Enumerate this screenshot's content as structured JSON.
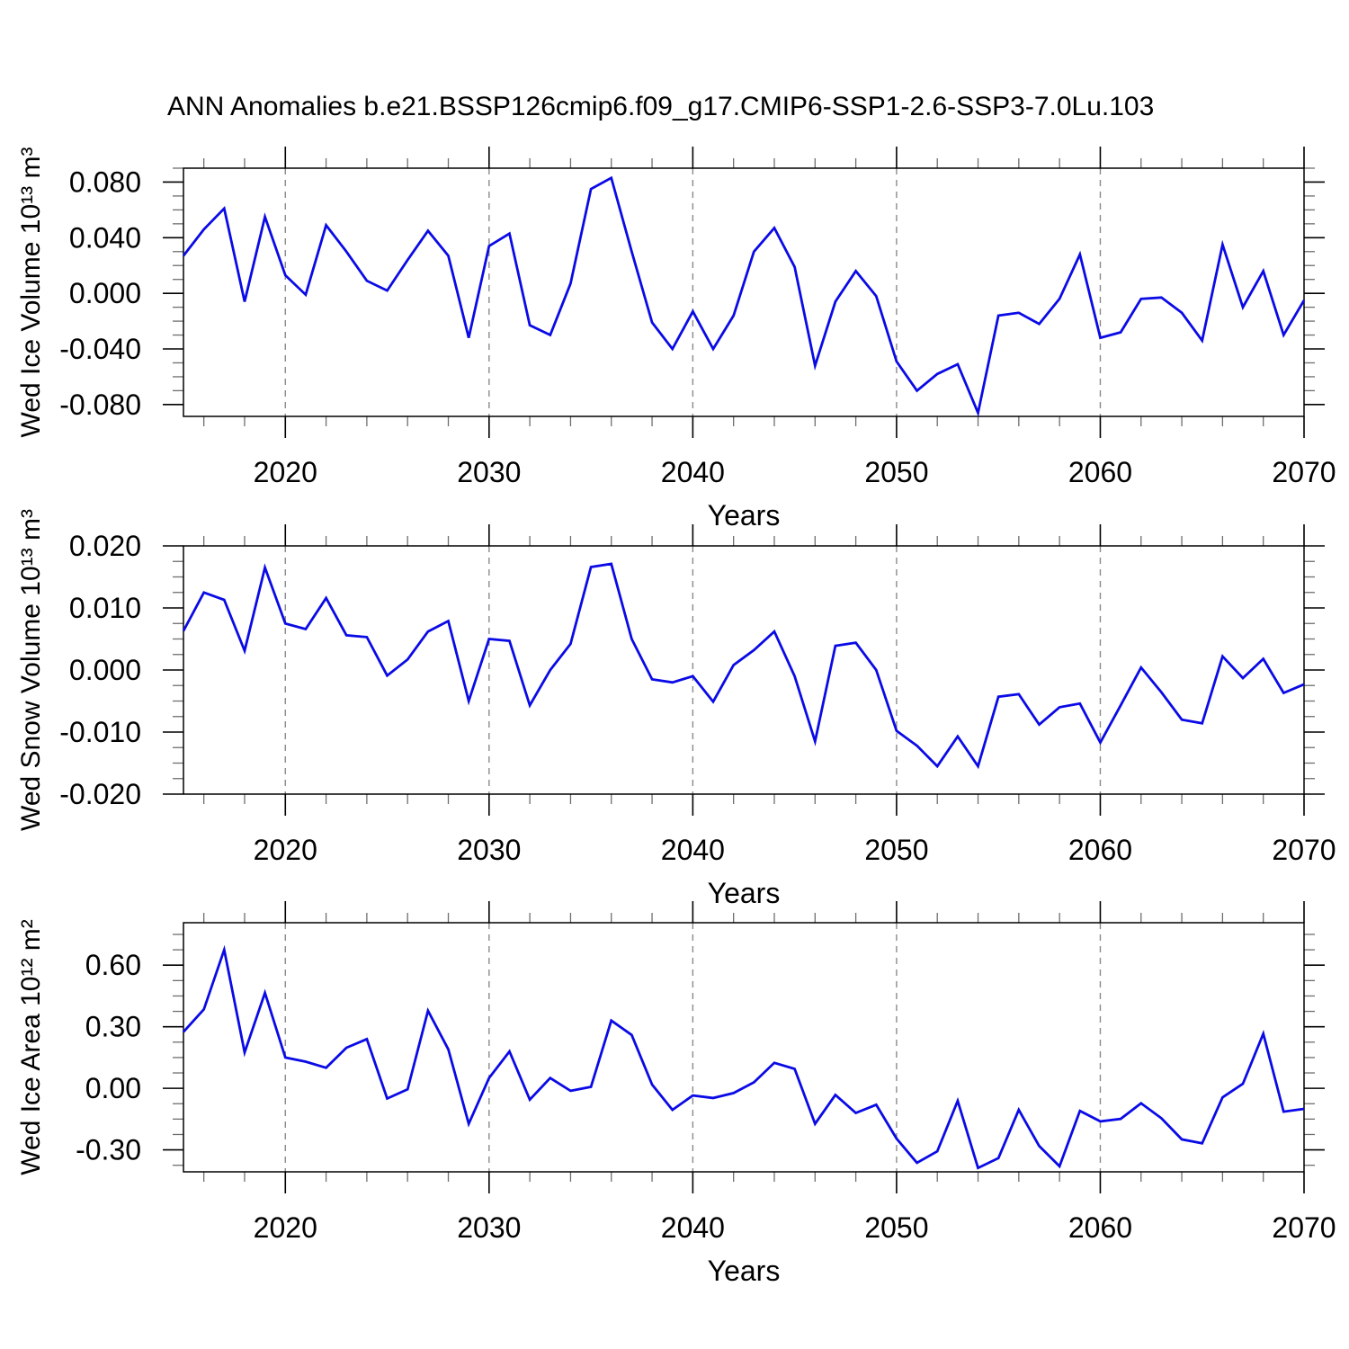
{
  "title": "ANN Anomalies b.e21.BSSP126cmip6.f09_g17.CMIP6-SSP1-2.6-SSP3-7.0Lu.103",
  "colors": {
    "line": "#0a0ae6",
    "axis": "#000000",
    "grid": "#8a8a8a",
    "minor_tick": "#6e6e6e",
    "text": "#000000"
  },
  "chart_data": [
    {
      "type": "line",
      "ylabel": "Wed Ice Volume 10¹³ m³",
      "xlabel": "Years",
      "x_start": 2015,
      "x_end": 2070,
      "ylim": [
        -0.0885,
        0.09
      ],
      "ytick_values": [
        0.08,
        0.04,
        0.0,
        -0.04,
        -0.08
      ],
      "ytick_labels": [
        "0.080",
        "0.040",
        "0.000",
        "-0.040",
        "-0.080"
      ],
      "y_minor_step": 0.01,
      "xtick_values": [
        2020,
        2030,
        2040,
        2050,
        2060,
        2070
      ],
      "xtick_labels": [
        "2020",
        "2030",
        "2040",
        "2050",
        "2060",
        "2070"
      ],
      "x_minor_step": 2,
      "grid_years": [
        2020,
        2030,
        2040,
        2050,
        2060
      ],
      "values": [
        0.027,
        0.046,
        0.061,
        -0.006,
        0.055,
        0.013,
        -0.001,
        0.049,
        0.03,
        0.009,
        0.002,
        0.024,
        0.045,
        0.027,
        -0.032,
        0.034,
        0.043,
        -0.023,
        -0.03,
        0.007,
        0.075,
        0.083,
        0.03,
        -0.021,
        -0.04,
        -0.013,
        -0.04,
        -0.016,
        0.03,
        0.047,
        0.019,
        -0.052,
        -0.006,
        0.016,
        -0.002,
        -0.049,
        -0.07,
        -0.058,
        -0.051,
        -0.086,
        -0.016,
        -0.014,
        -0.022,
        -0.004,
        0.028,
        -0.032,
        -0.028,
        -0.004,
        -0.003,
        -0.014,
        -0.034,
        0.035,
        -0.01,
        0.016,
        -0.03,
        -0.005
      ]
    },
    {
      "type": "line",
      "ylabel": "Wed Snow Volume 10¹³ m³",
      "xlabel": "Years",
      "x_start": 2015,
      "x_end": 2070,
      "ylim": [
        -0.02,
        0.02
      ],
      "ytick_values": [
        0.02,
        0.01,
        0.0,
        -0.01,
        -0.02
      ],
      "ytick_labels": [
        "0.020",
        "0.010",
        "0.000",
        "-0.010",
        "-0.020"
      ],
      "y_minor_step": 0.0025,
      "xtick_values": [
        2020,
        2030,
        2040,
        2050,
        2060,
        2070
      ],
      "xtick_labels": [
        "2020",
        "2030",
        "2040",
        "2050",
        "2060",
        "2070"
      ],
      "x_minor_step": 2,
      "grid_years": [
        2020,
        2030,
        2040,
        2050,
        2060
      ],
      "values": [
        0.0063,
        0.0125,
        0.0113,
        0.0031,
        0.0165,
        0.0075,
        0.0066,
        0.0116,
        0.0056,
        0.0053,
        -0.0009,
        0.0017,
        0.0062,
        0.0079,
        -0.005,
        0.005,
        0.0047,
        -0.0057,
        0.0,
        0.0042,
        0.0166,
        0.0171,
        0.005,
        -0.0015,
        -0.002,
        -0.001,
        -0.0051,
        0.0008,
        0.0032,
        0.0062,
        -0.001,
        -0.0115,
        0.0039,
        0.0044,
        0.0,
        -0.0098,
        -0.0122,
        -0.0155,
        -0.0107,
        -0.0155,
        -0.0043,
        -0.0039,
        -0.0088,
        -0.006,
        -0.0054,
        -0.0117,
        -0.0057,
        0.0004,
        -0.0036,
        -0.008,
        -0.0086,
        0.0022,
        -0.0013,
        0.0018,
        -0.0037,
        -0.0023
      ]
    },
    {
      "type": "line",
      "ylabel": "Wed Ice Area 10¹² m²",
      "xlabel": "Years",
      "x_start": 2015,
      "x_end": 2070,
      "ylim": [
        -0.407,
        0.807
      ],
      "ytick_values": [
        0.6,
        0.3,
        0.0,
        -0.3
      ],
      "ytick_labels": [
        "0.60",
        "0.30",
        "0.00",
        "-0.30"
      ],
      "y_minor_step": 0.075,
      "xtick_values": [
        2020,
        2030,
        2040,
        2050,
        2060,
        2070
      ],
      "xtick_labels": [
        "2020",
        "2030",
        "2040",
        "2050",
        "2060",
        "2070"
      ],
      "x_minor_step": 2,
      "grid_years": [
        2020,
        2030,
        2040,
        2050,
        2060
      ],
      "values": [
        0.275,
        0.385,
        0.675,
        0.175,
        0.465,
        0.15,
        0.13,
        0.1,
        0.198,
        0.24,
        -0.05,
        -0.005,
        0.378,
        0.19,
        -0.173,
        0.05,
        0.18,
        -0.055,
        0.05,
        -0.012,
        0.007,
        0.33,
        0.26,
        0.018,
        -0.105,
        -0.035,
        -0.047,
        -0.023,
        0.029,
        0.124,
        0.095,
        -0.173,
        -0.032,
        -0.12,
        -0.08,
        -0.245,
        -0.363,
        -0.307,
        -0.061,
        -0.388,
        -0.34,
        -0.105,
        -0.281,
        -0.38,
        -0.11,
        -0.161,
        -0.149,
        -0.073,
        -0.146,
        -0.249,
        -0.268,
        -0.044,
        0.022,
        0.266,
        -0.114,
        -0.1
      ]
    }
  ]
}
